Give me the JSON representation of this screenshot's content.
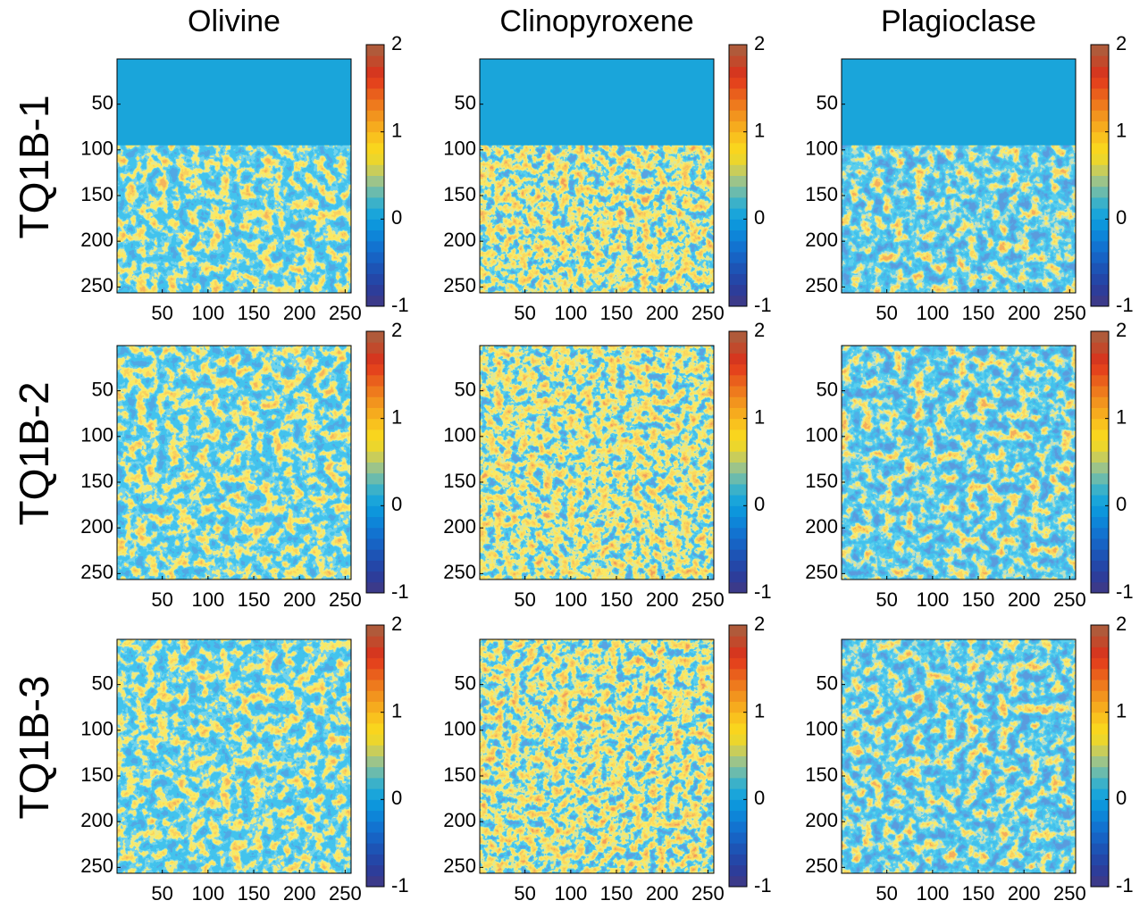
{
  "colormap": [
    "#3b3a8a",
    "#2d3d9a",
    "#2447a8",
    "#1d54b5",
    "#1763c4",
    "#1273d0",
    "#0e85d8",
    "#0d96dc",
    "#1aa5da",
    "#3bb1c9",
    "#6bbbad",
    "#9cc48a",
    "#c9cd5a",
    "#ecd62c",
    "#f9d51e",
    "#f9c21e",
    "#f6ab1e",
    "#f2941e",
    "#ee7a1d",
    "#e95f1c",
    "#e4431c",
    "#d5371f",
    "#c14a2c",
    "#b05a3a"
  ],
  "chart_data": [
    {
      "type": "heatmap",
      "title": "Olivine",
      "ylabel": "TQ1B-1",
      "xlim": [
        0.5,
        256.5
      ],
      "ylim": [
        0.5,
        256.5
      ],
      "y_reversed": true,
      "xticks": [
        50,
        100,
        150,
        200,
        250
      ],
      "yticks": [
        50,
        100,
        150,
        200,
        250
      ],
      "clim": [
        -1,
        2
      ],
      "cticks": [
        -1,
        0,
        1,
        2
      ],
      "uniform_rows": [
        0.5,
        95
      ],
      "uniform_value": 0.1
    },
    {
      "type": "heatmap",
      "title": "Clinopyroxene",
      "xlim": [
        0.5,
        256.5
      ],
      "ylim": [
        0.5,
        256.5
      ],
      "y_reversed": true,
      "xticks": [
        50,
        100,
        150,
        200,
        250
      ],
      "yticks": [
        50,
        100,
        150,
        200,
        250
      ],
      "clim": [
        -1,
        2
      ],
      "cticks": [
        -1,
        0,
        1,
        2
      ],
      "uniform_rows": [
        0.5,
        95
      ],
      "uniform_value": 0.1
    },
    {
      "type": "heatmap",
      "title": "Plagioclase",
      "xlim": [
        0.5,
        256.5
      ],
      "ylim": [
        0.5,
        256.5
      ],
      "y_reversed": true,
      "xticks": [
        50,
        100,
        150,
        200,
        250
      ],
      "yticks": [
        50,
        100,
        150,
        200,
        250
      ],
      "clim": [
        -1,
        2
      ],
      "cticks": [
        -1,
        0,
        1,
        2
      ],
      "uniform_rows": [
        0.5,
        95
      ],
      "uniform_value": 0.1
    },
    {
      "type": "heatmap",
      "ylabel": "TQ1B-2",
      "xlim": [
        0.5,
        256.5
      ],
      "ylim": [
        0.5,
        256.5
      ],
      "y_reversed": true,
      "xticks": [
        50,
        100,
        150,
        200,
        250
      ],
      "yticks": [
        50,
        100,
        150,
        200,
        250
      ],
      "clim": [
        -1,
        2
      ],
      "cticks": [
        -1,
        0,
        1,
        2
      ]
    },
    {
      "type": "heatmap",
      "xlim": [
        0.5,
        256.5
      ],
      "ylim": [
        0.5,
        256.5
      ],
      "y_reversed": true,
      "xticks": [
        50,
        100,
        150,
        200,
        250
      ],
      "yticks": [
        50,
        100,
        150,
        200,
        250
      ],
      "clim": [
        -1,
        2
      ],
      "cticks": [
        -1,
        0,
        1,
        2
      ]
    },
    {
      "type": "heatmap",
      "xlim": [
        0.5,
        256.5
      ],
      "ylim": [
        0.5,
        256.5
      ],
      "y_reversed": true,
      "xticks": [
        50,
        100,
        150,
        200,
        250
      ],
      "yticks": [
        50,
        100,
        150,
        200,
        250
      ],
      "clim": [
        -1,
        2
      ],
      "cticks": [
        -1,
        0,
        1,
        2
      ]
    },
    {
      "type": "heatmap",
      "ylabel": "TQ1B-3",
      "xlim": [
        0.5,
        256.5
      ],
      "ylim": [
        0.5,
        256.5
      ],
      "y_reversed": true,
      "xticks": [
        50,
        100,
        150,
        200,
        250
      ],
      "yticks": [
        50,
        100,
        150,
        200,
        250
      ],
      "clim": [
        -1,
        2
      ],
      "cticks": [
        -1,
        0,
        1,
        2
      ]
    },
    {
      "type": "heatmap",
      "xlim": [
        0.5,
        256.5
      ],
      "ylim": [
        0.5,
        256.5
      ],
      "y_reversed": true,
      "xticks": [
        50,
        100,
        150,
        200,
        250
      ],
      "yticks": [
        50,
        100,
        150,
        200,
        250
      ],
      "clim": [
        -1,
        2
      ],
      "cticks": [
        -1,
        0,
        1,
        2
      ]
    },
    {
      "type": "heatmap",
      "xlim": [
        0.5,
        256.5
      ],
      "ylim": [
        0.5,
        256.5
      ],
      "y_reversed": true,
      "xticks": [
        50,
        100,
        150,
        200,
        250
      ],
      "yticks": [
        50,
        100,
        150,
        200,
        250
      ],
      "clim": [
        -1,
        2
      ],
      "cticks": [
        -1,
        0,
        1,
        2
      ]
    }
  ]
}
